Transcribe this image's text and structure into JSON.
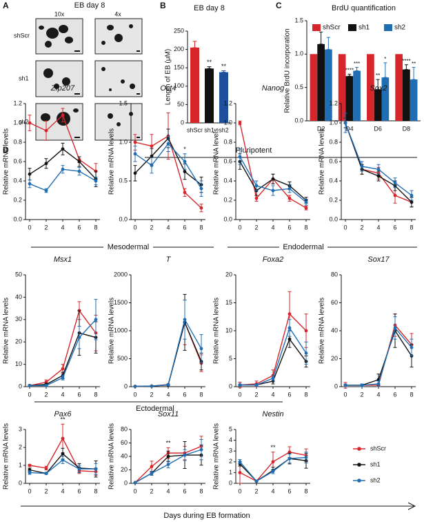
{
  "figure": {
    "panel_labels": [
      "A",
      "B",
      "C",
      "D"
    ],
    "panel_a": {
      "title": "EB day 8",
      "columns": [
        "10x",
        "4x"
      ],
      "rows": [
        "shScr",
        "sh1",
        "sh2"
      ]
    },
    "groups": [
      "Pluripotent",
      "Mesodermal",
      "Endodermal",
      "Ectodermal"
    ],
    "xlabel": "Days during EB formation"
  },
  "chart_data": [
    {
      "type": "bar",
      "title": "EB day 8",
      "ylabel": "Length of EB (μM)",
      "categories": [
        "shScr",
        "sh1",
        "sh2"
      ],
      "values": [
        205,
        148,
        138
      ],
      "errors": [
        17,
        5,
        4
      ],
      "colors": [
        "#d7262b",
        "#111111",
        "#1d4f9c"
      ],
      "significance": [
        null,
        "**",
        "**"
      ],
      "ylim": [
        0,
        250
      ],
      "yticks": [
        0,
        50,
        100,
        150,
        200,
        250
      ]
    },
    {
      "type": "grouped_bar",
      "title": "BrdU quantification",
      "ylabel": "Relative BrdU incorporation",
      "categories": [
        "D2",
        "D4",
        "D6",
        "D8"
      ],
      "legend": "top",
      "series": [
        {
          "name": "shScr",
          "color": "#d7262b",
          "values": [
            1,
            1,
            1,
            1
          ],
          "errors": [
            0,
            0,
            0,
            0
          ],
          "significance": [
            null,
            null,
            null,
            null
          ]
        },
        {
          "name": "sh1",
          "color": "#111111",
          "values": [
            1.15,
            0.67,
            0.47,
            0.77
          ],
          "errors": [
            0.18,
            0.03,
            0.15,
            0.07
          ],
          "significance": [
            null,
            "****",
            "**",
            "****"
          ]
        },
        {
          "name": "sh2",
          "color": "#1f6eb4",
          "values": [
            1.07,
            0.75,
            0.65,
            0.62
          ],
          "errors": [
            0.18,
            0.05,
            0.22,
            0.18
          ],
          "significance": [
            null,
            "***",
            "*",
            "**"
          ]
        }
      ],
      "ylim": [
        0,
        1.5
      ],
      "yticks": [
        {
          "value": 0,
          "label": "0.0"
        },
        0.5,
        {
          "value": 1,
          "label": "1.0"
        },
        1.5
      ]
    },
    {
      "type": "line",
      "title": "Zfp207",
      "ylabel": "Relative mRNA levels",
      "x": [
        0,
        2,
        4,
        6,
        8
      ],
      "xlim": [
        -0.5,
        8.5
      ],
      "xticks": [
        0,
        2,
        4,
        6,
        8
      ],
      "ylim": [
        0,
        1.2
      ],
      "yticks": [
        {
          "value": 0,
          "label": "0.0"
        },
        0.2,
        0.4,
        0.6,
        0.8,
        {
          "value": 1,
          "label": "1.0"
        },
        1.2
      ],
      "significance": [
        null,
        null,
        null,
        null,
        null
      ],
      "series": [
        {
          "name": "shScr",
          "color": "#d7262b",
          "values": [
            1.0,
            0.92,
            1.08,
            0.62,
            0.5
          ],
          "errors": [
            0.08,
            0.1,
            0.07,
            0.03,
            0.08
          ]
        },
        {
          "name": "sh1",
          "color": "#111111",
          "values": [
            0.47,
            0.58,
            0.73,
            0.6,
            0.42
          ],
          "errors": [
            0.06,
            0.05,
            0.06,
            0.05,
            0.08
          ]
        },
        {
          "name": "sh2",
          "color": "#1f6eb4",
          "values": [
            0.37,
            0.3,
            0.52,
            0.5,
            0.4
          ],
          "errors": [
            0.04,
            0.02,
            0.04,
            0.04,
            0.04
          ]
        }
      ]
    },
    {
      "type": "line",
      "title": "Oct4",
      "ylabel": "Relative mRNA levels",
      "x": [
        0,
        2,
        4,
        6,
        8
      ],
      "xlim": [
        -0.5,
        8.5
      ],
      "xticks": [
        0,
        2,
        4,
        6,
        8
      ],
      "ylim": [
        0,
        1.5
      ],
      "yticks": [
        {
          "value": 0,
          "label": "0.0"
        },
        0.5,
        {
          "value": 1,
          "label": "1.0"
        },
        1.5
      ],
      "significance": [
        null,
        null,
        null,
        "*",
        null
      ],
      "series": [
        {
          "name": "shScr",
          "color": "#d7262b",
          "values": [
            1.0,
            0.95,
            1.08,
            0.35,
            0.15
          ],
          "errors": [
            0.1,
            0.15,
            0.3,
            0.05,
            0.05
          ]
        },
        {
          "name": "sh1",
          "color": "#111111",
          "values": [
            0.6,
            0.82,
            1.05,
            0.62,
            0.45
          ],
          "errors": [
            0.1,
            0.1,
            0.12,
            0.1,
            0.1
          ]
        },
        {
          "name": "sh2",
          "color": "#1f6eb4",
          "values": [
            0.85,
            0.7,
            0.98,
            0.75,
            0.4
          ],
          "errors": [
            0.1,
            0.1,
            0.1,
            0.1,
            0.1
          ]
        }
      ]
    },
    {
      "type": "line",
      "title": "Nanog",
      "ylabel": "Relative mRNA levels",
      "x": [
        0,
        2,
        4,
        6,
        8
      ],
      "xlim": [
        -0.5,
        8.5
      ],
      "xticks": [
        0,
        2,
        4,
        6,
        8
      ],
      "ylim": [
        0,
        1.2
      ],
      "yticks": [
        {
          "value": 0,
          "label": "0.0"
        },
        0.2,
        0.4,
        0.6,
        0.8,
        {
          "value": 1,
          "label": "1.0"
        },
        1.2
      ],
      "significance": [
        null,
        null,
        null,
        null,
        null
      ],
      "series": [
        {
          "name": "shScr",
          "color": "#d7262b",
          "values": [
            1.0,
            0.22,
            0.42,
            0.22,
            0.12
          ],
          "errors": [
            0.02,
            0.03,
            0.05,
            0.03,
            0.02
          ]
        },
        {
          "name": "sh1",
          "color": "#111111",
          "values": [
            0.6,
            0.3,
            0.42,
            0.35,
            0.2
          ],
          "errors": [
            0.08,
            0.05,
            0.05,
            0.04,
            0.03
          ]
        },
        {
          "name": "sh2",
          "color": "#1f6eb4",
          "values": [
            0.65,
            0.35,
            0.3,
            0.32,
            0.18
          ],
          "errors": [
            0.08,
            0.05,
            0.05,
            0.04,
            0.03
          ]
        }
      ]
    },
    {
      "type": "line",
      "title": "Sox2",
      "ylabel": "Relative mRNA levels",
      "x": [
        0,
        2,
        4,
        6,
        8
      ],
      "xlim": [
        -0.5,
        8.5
      ],
      "xticks": [
        0,
        2,
        4,
        6,
        8
      ],
      "ylim": [
        0,
        1.2
      ],
      "yticks": [
        {
          "value": 0,
          "label": "0.0"
        },
        0.2,
        0.4,
        0.6,
        0.8,
        {
          "value": 1,
          "label": "1.0"
        },
        1.2
      ],
      "significance": [
        null,
        null,
        null,
        null,
        null
      ],
      "series": [
        {
          "name": "shScr",
          "color": "#d7262b",
          "values": [
            1.0,
            0.52,
            0.48,
            0.25,
            0.18
          ],
          "errors": [
            0.05,
            0.05,
            0.06,
            0.08,
            0.05
          ]
        },
        {
          "name": "sh1",
          "color": "#111111",
          "values": [
            1.0,
            0.52,
            0.45,
            0.35,
            0.18
          ],
          "errors": [
            0.05,
            0.05,
            0.05,
            0.05,
            0.05
          ]
        },
        {
          "name": "sh2",
          "color": "#1f6eb4",
          "values": [
            1.0,
            0.55,
            0.52,
            0.38,
            0.25
          ],
          "errors": [
            0.1,
            0.05,
            0.05,
            0.05,
            0.05
          ]
        }
      ]
    },
    {
      "type": "line",
      "title": "Msx1",
      "ylabel": "Relative mRNA levels",
      "x": [
        0,
        2,
        4,
        6,
        8
      ],
      "xlim": [
        -0.5,
        8.5
      ],
      "xticks": [
        0,
        2,
        4,
        6,
        8
      ],
      "ylim": [
        0,
        50
      ],
      "yticks": [
        0,
        10,
        20,
        30,
        40,
        50
      ],
      "significance": [
        null,
        null,
        null,
        null,
        null
      ],
      "series": [
        {
          "name": "shScr",
          "color": "#d7262b",
          "values": [
            0.5,
            2,
            8,
            34,
            24
          ],
          "errors": [
            0.3,
            1,
            2,
            4,
            8
          ]
        },
        {
          "name": "sh1",
          "color": "#111111",
          "values": [
            0.5,
            1,
            5,
            24,
            22
          ],
          "errors": [
            0.3,
            0.5,
            1.5,
            10,
            7
          ]
        },
        {
          "name": "sh2",
          "color": "#1f6eb4",
          "values": [
            0.5,
            0.5,
            4,
            22,
            30
          ],
          "errors": [
            0.3,
            0.3,
            1,
            5,
            9
          ]
        }
      ]
    },
    {
      "type": "line",
      "title": "T",
      "ylabel": "Relative mRNA levels",
      "x": [
        0,
        2,
        4,
        6,
        8
      ],
      "xlim": [
        -0.5,
        8.5
      ],
      "xticks": [
        0,
        2,
        4,
        6,
        8
      ],
      "ylim": [
        0,
        2000
      ],
      "yticks": [
        0,
        500,
        1000,
        1500,
        2000
      ],
      "significance": [
        null,
        null,
        null,
        null,
        null
      ],
      "series": [
        {
          "name": "shScr",
          "color": "#d7262b",
          "values": [
            5,
            10,
            40,
            1150,
            420
          ],
          "errors": [
            3,
            5,
            10,
            400,
            150
          ]
        },
        {
          "name": "sh1",
          "color": "#111111",
          "values": [
            5,
            10,
            30,
            1150,
            450
          ],
          "errors": [
            3,
            5,
            10,
            500,
            150
          ]
        },
        {
          "name": "sh2",
          "color": "#1f6eb4",
          "values": [
            5,
            10,
            35,
            1200,
            680
          ],
          "errors": [
            3,
            5,
            10,
            350,
            250
          ]
        }
      ]
    },
    {
      "type": "line",
      "title": "Foxa2",
      "ylabel": "Relative mRNA levels",
      "x": [
        0,
        2,
        4,
        6,
        8
      ],
      "xlim": [
        -0.5,
        8.5
      ],
      "xticks": [
        0,
        2,
        4,
        6,
        8
      ],
      "ylim": [
        0,
        20
      ],
      "yticks": [
        0,
        5,
        10,
        15,
        20
      ],
      "significance": [
        null,
        null,
        null,
        null,
        null
      ],
      "series": [
        {
          "name": "shScr",
          "color": "#d7262b",
          "values": [
            0.3,
            0.5,
            2,
            13,
            10
          ],
          "errors": [
            0.5,
            0.5,
            1,
            4,
            3
          ]
        },
        {
          "name": "sh1",
          "color": "#111111",
          "values": [
            0.3,
            0.3,
            1,
            8.5,
            4.5
          ],
          "errors": [
            0.2,
            0.2,
            0.5,
            1.5,
            1
          ]
        },
        {
          "name": "sh2",
          "color": "#1f6eb4",
          "values": [
            0.3,
            0.3,
            1.5,
            10.5,
            6
          ],
          "errors": [
            0.2,
            0.2,
            0.5,
            1.5,
            2
          ]
        }
      ]
    },
    {
      "type": "line",
      "title": "Sox17",
      "ylabel": "Relative mRNA levels",
      "x": [
        0,
        2,
        4,
        6,
        8
      ],
      "xlim": [
        -0.5,
        8.5
      ],
      "xticks": [
        0,
        2,
        4,
        6,
        8
      ],
      "ylim": [
        0,
        80
      ],
      "yticks": [
        0,
        20,
        40,
        60,
        80
      ],
      "significance": [
        null,
        null,
        null,
        null,
        null
      ],
      "series": [
        {
          "name": "shScr",
          "color": "#d7262b",
          "values": [
            1,
            1,
            1,
            44,
            30
          ],
          "errors": [
            2,
            1,
            1,
            8,
            8
          ]
        },
        {
          "name": "sh1",
          "color": "#111111",
          "values": [
            1,
            1,
            5,
            40,
            22
          ],
          "errors": [
            1,
            1,
            4,
            12,
            8
          ]
        },
        {
          "name": "sh2",
          "color": "#1f6eb4",
          "values": [
            1,
            1,
            2,
            42,
            28
          ],
          "errors": [
            1,
            1,
            2,
            8,
            6
          ]
        }
      ]
    },
    {
      "type": "line",
      "title": "Pax6",
      "ylabel": "Relative mRNA levels",
      "x": [
        0,
        2,
        4,
        6,
        8
      ],
      "xlim": [
        -0.5,
        8.5
      ],
      "xticks": [
        0,
        2,
        4,
        6,
        8
      ],
      "ylim": [
        0,
        3
      ],
      "yticks": [
        0,
        1,
        2,
        3
      ],
      "significance": [
        null,
        null,
        "**",
        null,
        null
      ],
      "series": [
        {
          "name": "shScr",
          "color": "#d7262b",
          "values": [
            1.0,
            0.85,
            2.5,
            0.7,
            0.65
          ],
          "errors": [
            0.05,
            0.1,
            0.8,
            0.15,
            0.2
          ]
        },
        {
          "name": "sh1",
          "color": "#111111",
          "values": [
            0.75,
            0.55,
            1.65,
            0.85,
            0.8
          ],
          "errors": [
            0.1,
            0.05,
            0.3,
            0.25,
            0.45
          ]
        },
        {
          "name": "sh2",
          "color": "#1f6eb4",
          "values": [
            0.6,
            0.55,
            1.3,
            0.8,
            0.8
          ],
          "errors": [
            0.1,
            0.05,
            0.2,
            0.2,
            0.3
          ]
        }
      ]
    },
    {
      "type": "line",
      "title": "Sox11",
      "ylabel": "Relative mRNA levels",
      "x": [
        0,
        2,
        4,
        6,
        8
      ],
      "xlim": [
        -0.5,
        8.5
      ],
      "xticks": [
        0,
        2,
        4,
        6,
        8
      ],
      "ylim": [
        0,
        80
      ],
      "yticks": [
        0,
        20,
        40,
        60,
        80
      ],
      "significance": [
        null,
        null,
        "**",
        null,
        null
      ],
      "series": [
        {
          "name": "shScr",
          "color": "#d7262b",
          "values": [
            1,
            25,
            45,
            45,
            55
          ],
          "errors": [
            0.5,
            8,
            8,
            10,
            15
          ]
        },
        {
          "name": "sh1",
          "color": "#111111",
          "values": [
            1,
            15,
            40,
            42,
            42
          ],
          "errors": [
            0.5,
            3,
            8,
            20,
            15
          ]
        },
        {
          "name": "sh2",
          "color": "#1f6eb4",
          "values": [
            1,
            15,
            28,
            42,
            50
          ],
          "errors": [
            0.5,
            3,
            5,
            8,
            15
          ]
        }
      ]
    },
    {
      "type": "line",
      "title": "Nestin",
      "ylabel": "Relative mRNA levels",
      "x": [
        0,
        2,
        4,
        6,
        8
      ],
      "xlim": [
        -0.5,
        8.5
      ],
      "xticks": [
        0,
        2,
        4,
        6,
        8
      ],
      "ylim": [
        0,
        5
      ],
      "yticks": [
        0,
        1,
        2,
        3,
        4,
        5
      ],
      "significance": [
        null,
        null,
        "**",
        null,
        null
      ],
      "series": [
        {
          "name": "shScr",
          "color": "#d7262b",
          "values": [
            1.0,
            0.2,
            2.0,
            2.9,
            2.6
          ],
          "errors": [
            1.0,
            0.05,
            0.9,
            0.5,
            0.6
          ]
        },
        {
          "name": "sh1",
          "color": "#111111",
          "values": [
            1.8,
            0.2,
            1.2,
            2.3,
            2.1
          ],
          "errors": [
            0.2,
            0.05,
            0.3,
            0.5,
            0.7
          ]
        },
        {
          "name": "sh2",
          "color": "#1f6eb4",
          "values": [
            2.0,
            0.2,
            1.1,
            2.3,
            2.4
          ],
          "errors": [
            0.2,
            0.05,
            0.2,
            0.4,
            0.5
          ]
        }
      ]
    }
  ]
}
